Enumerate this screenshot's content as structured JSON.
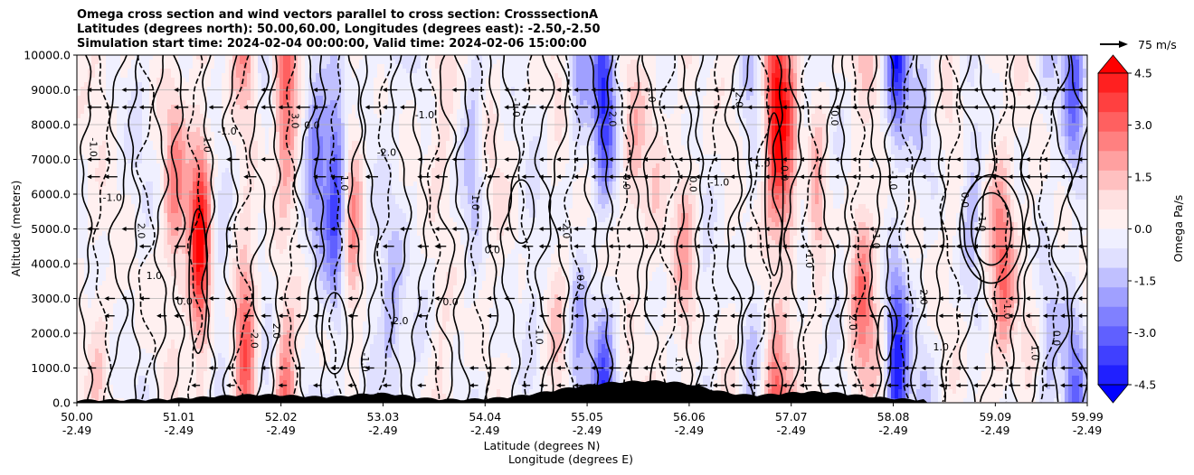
{
  "chart_data": {
    "type": "contour",
    "title_lines": [
      "Omega cross section and wind vectors parallel to cross section: CrosssectionA",
      "Latitudes (degrees north): 50.00,60.00, Longitudes (degrees east): -2.50,-2.50",
      "Simulation start time: 2024-02-04 00:00:00, Valid time: 2024-02-06 15:00:00"
    ],
    "ylabel": "Altitude (meters)",
    "xlabel_lat": "Latitude (degrees N)",
    "xlabel_lon": "Longitude (degrees E)",
    "y_ticks": [
      "0.0",
      "1000.0",
      "2000.0",
      "3000.0",
      "4000.0",
      "5000.0",
      "6000.0",
      "7000.0",
      "8000.0",
      "9000.0",
      "10000.0"
    ],
    "ylim": [
      0,
      10000
    ],
    "x_ticks": [
      {
        "lat": "50.00",
        "lon": "-2.49",
        "pos": 0.0
      },
      {
        "lat": "51.01",
        "lon": "-2.49",
        "pos": 0.101
      },
      {
        "lat": "52.02",
        "lon": "-2.49",
        "pos": 0.202
      },
      {
        "lat": "53.03",
        "lon": "-2.49",
        "pos": 0.303
      },
      {
        "lat": "54.04",
        "lon": "-2.49",
        "pos": 0.404
      },
      {
        "lat": "55.05",
        "lon": "-2.49",
        "pos": 0.505
      },
      {
        "lat": "56.06",
        "lon": "-2.49",
        "pos": 0.606
      },
      {
        "lat": "57.07",
        "lon": "-2.49",
        "pos": 0.707
      },
      {
        "lat": "58.08",
        "lon": "-2.49",
        "pos": 0.808
      },
      {
        "lat": "59.09",
        "lon": "-2.49",
        "pos": 0.909
      },
      {
        "lat": "59.99",
        "lon": "-2.49",
        "pos": 1.0
      }
    ],
    "xlim": [
      50.0,
      59.99
    ],
    "colorbar": {
      "label": "Omega Pa/s",
      "ticks": [
        "4.5",
        "3.0",
        "1.5",
        "0.0",
        "-1.5",
        "-3.0",
        "-4.5"
      ],
      "range": [
        -5.25,
        5.25
      ],
      "colors_top_to_bottom": [
        "#ff0000",
        "#ff2020",
        "#ff4040",
        "#ff6060",
        "#ff8080",
        "#ffa0a0",
        "#ffc0c0",
        "#ffe0e0",
        "#fff0f0",
        "#f0f0ff",
        "#e0e0ff",
        "#c0c0ff",
        "#a0a0ff",
        "#8080ff",
        "#6060ff",
        "#4040ff",
        "#2020ff",
        "#0000ff"
      ]
    },
    "quiver_key": {
      "label": "75 m/s"
    },
    "grid": true,
    "contour_labels": [
      "-1.0",
      "-1.0",
      "2.0",
      "1.0",
      "0.0",
      "1.0",
      "-1.0",
      "-2.0",
      "2.0",
      "3.0",
      "0.0",
      "1.0",
      "-1.0",
      "-2.0",
      "2.0",
      "-1.0",
      "0.0",
      "1.0",
      "0.0",
      "-1.0",
      "-1.0",
      "-2.0",
      "0.0",
      "2.0",
      "0.0",
      "-1.0",
      "1.0",
      "0.0",
      "-1.0",
      "2.0",
      "1.0",
      "0.0",
      "-1.0",
      "0.0",
      "2.0",
      "-1.0",
      "-1.0",
      "2.0",
      "1.0",
      "0.0",
      "-1.0",
      "-1.0",
      "1.0",
      "0.0"
    ]
  }
}
